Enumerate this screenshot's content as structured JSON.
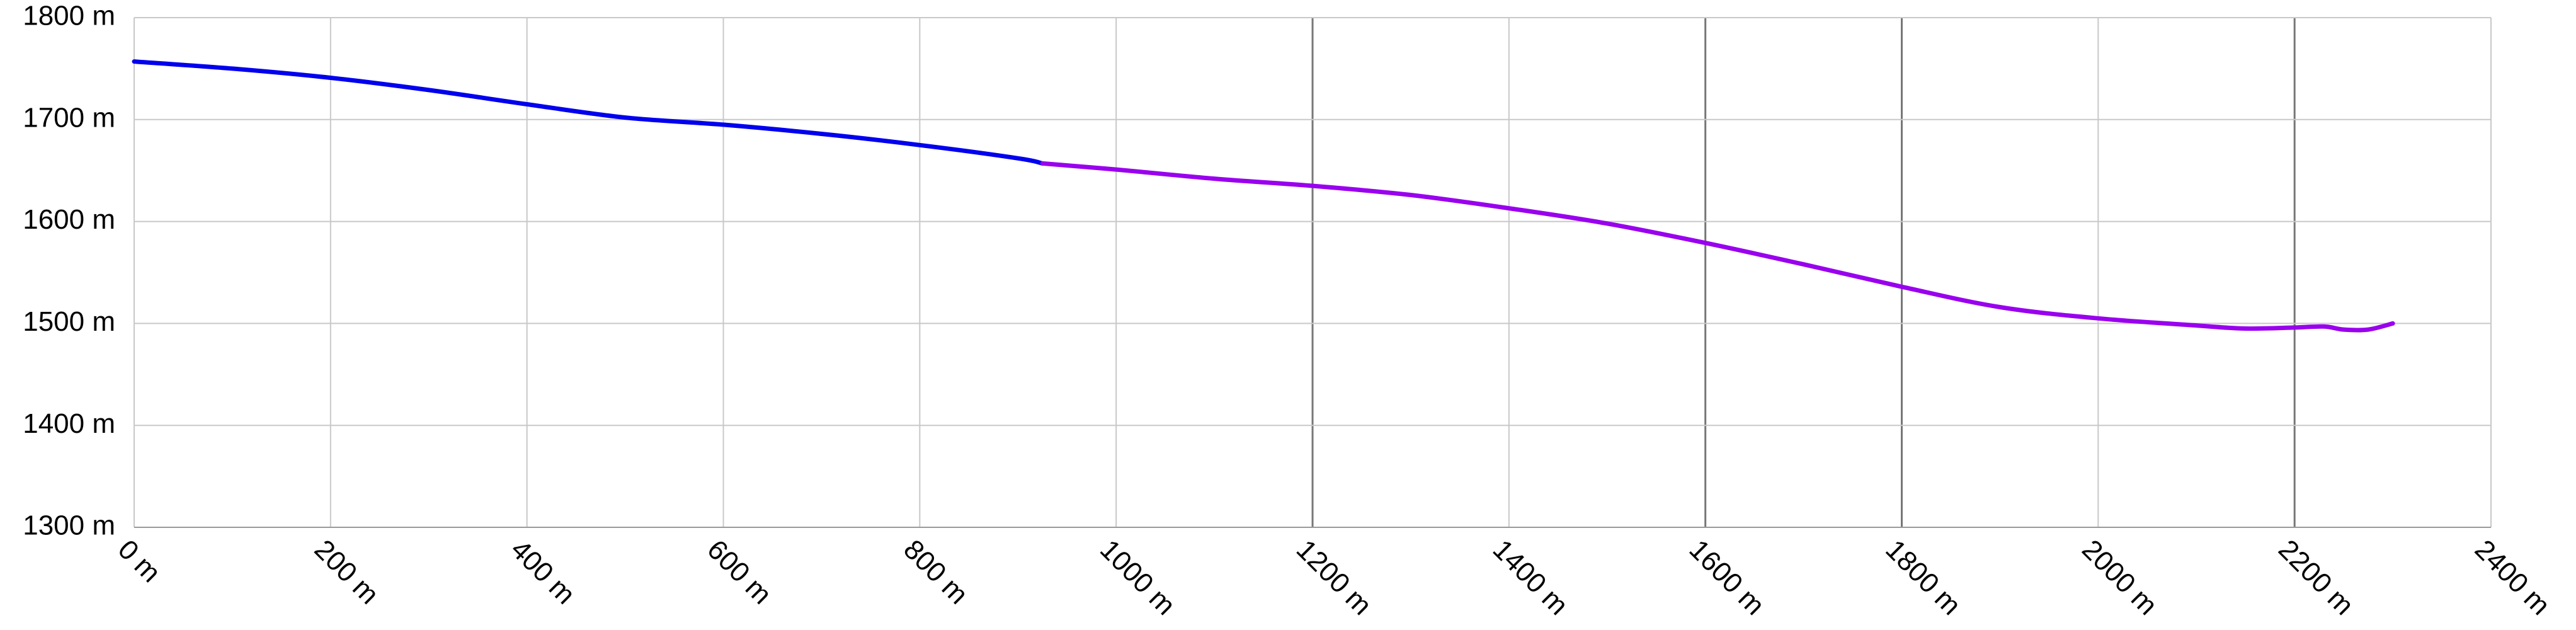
{
  "chart_data": {
    "type": "line",
    "title": "",
    "xlabel": "",
    "ylabel": "",
    "xlim": [
      0,
      2400
    ],
    "ylim": [
      1300,
      1800
    ],
    "x_ticks": [
      0,
      200,
      400,
      600,
      800,
      1000,
      1200,
      1400,
      1600,
      1800,
      2000,
      2200,
      2400
    ],
    "y_ticks": [
      1300,
      1400,
      1500,
      1600,
      1700,
      1800
    ],
    "x_tick_labels": [
      "0 m",
      "200 m",
      "400 m",
      "600 m",
      "800 m",
      "1000 m",
      "1200 m",
      "1400 m",
      "1600 m",
      "1800 m",
      "2000 m",
      "2200 m",
      "2400 m"
    ],
    "y_tick_labels": [
      "1300 m",
      "1400 m",
      "1500 m",
      "1600 m",
      "1700 m",
      "1800 m"
    ],
    "grid": true,
    "legend": "none",
    "series": [
      {
        "color": "#0000ee",
        "x": [
          0,
          100,
          200,
          300,
          400,
          500,
          600,
          700,
          800,
          900,
          925
        ],
        "y": [
          1757,
          1750,
          1741,
          1729,
          1715,
          1702,
          1695,
          1686,
          1675,
          1662,
          1657
        ]
      },
      {
        "color": "#9900ee",
        "x": [
          925,
          1000,
          1100,
          1200,
          1300,
          1400,
          1500,
          1600,
          1700,
          1800,
          1900,
          2000,
          2100,
          2150,
          2200,
          2230,
          2250,
          2275,
          2300
        ],
        "y": [
          1657,
          1651,
          1642,
          1635,
          1626,
          1613,
          1598,
          1579,
          1558,
          1536,
          1516,
          1505,
          1498,
          1495,
          1496,
          1497,
          1494,
          1494,
          1500
        ]
      }
    ]
  }
}
